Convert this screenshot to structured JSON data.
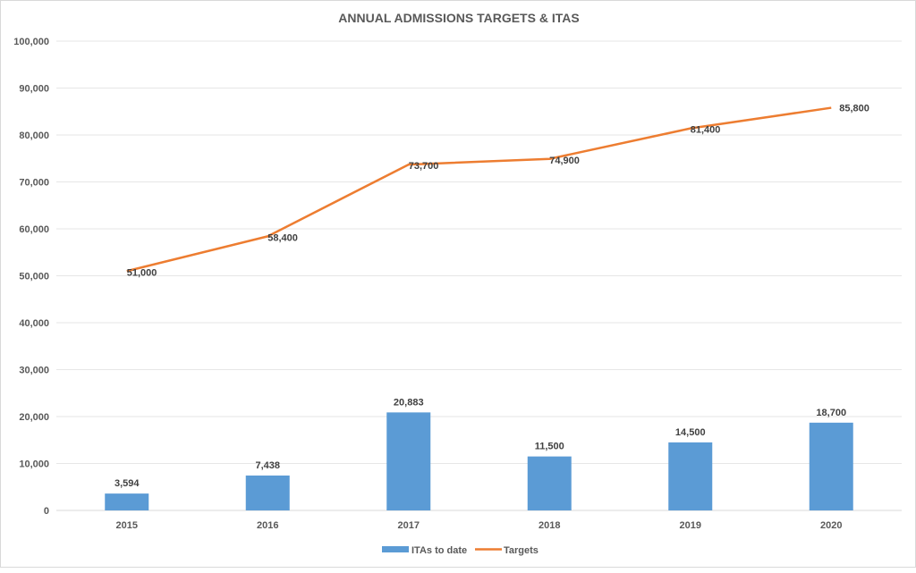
{
  "chart_data": {
    "type": "bar",
    "title": "ANNUAL ADMISSIONS TARGETS & ITAS",
    "xlabel": "",
    "ylabel": "",
    "categories": [
      "2015",
      "2016",
      "2017",
      "2018",
      "2019",
      "2020"
    ],
    "series": [
      {
        "name": "ITAs to date",
        "type": "bar",
        "color": "#5b9bd5",
        "values": [
          3594,
          7438,
          20883,
          11500,
          14500,
          18700
        ],
        "labels": [
          "3,594",
          "7,438",
          "20,883",
          "11,500",
          "14,500",
          "18,700"
        ]
      },
      {
        "name": "Targets",
        "type": "line",
        "color": "#ed7d31",
        "values": [
          51000,
          58400,
          73700,
          74900,
          81400,
          85800
        ],
        "labels": [
          "51,000",
          "58,400",
          "73,700",
          "74,900",
          "81,400",
          "85,800"
        ]
      }
    ],
    "ylim": [
      0,
      100000
    ],
    "yticks": [
      0,
      10000,
      20000,
      30000,
      40000,
      50000,
      60000,
      70000,
      80000,
      90000,
      100000
    ],
    "ytick_labels": [
      "0",
      "10,000",
      "20,000",
      "30,000",
      "40,000",
      "50,000",
      "60,000",
      "70,000",
      "80,000",
      "90,000",
      "100,000"
    ],
    "grid": true,
    "legend": {
      "position": "bottom",
      "entries": [
        "ITAs to date",
        "Targets"
      ]
    }
  }
}
